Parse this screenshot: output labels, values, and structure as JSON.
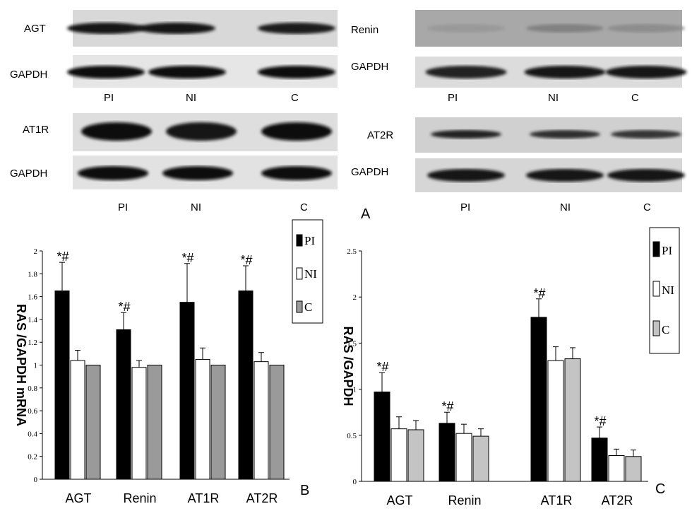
{
  "panel_a": {
    "letter": "A",
    "lanes": [
      "PI",
      "NI",
      "C"
    ],
    "blots": [
      {
        "label": "AGT",
        "intensity": [
          0.92,
          0.9,
          0.88
        ]
      },
      {
        "label": "GAPDH",
        "intensity": [
          0.95,
          0.93,
          0.94
        ]
      },
      {
        "label": "AT1R",
        "intensity": [
          0.95,
          0.92,
          0.93
        ]
      },
      {
        "label": "GAPDH",
        "intensity": [
          0.97,
          0.96,
          0.96
        ]
      },
      {
        "label": "Renin",
        "intensity": [
          0.35,
          0.45,
          0.4
        ]
      },
      {
        "label": "GAPDH",
        "intensity": [
          0.85,
          0.9,
          0.9
        ]
      },
      {
        "label": "AT2R",
        "intensity": [
          0.85,
          0.8,
          0.78
        ]
      },
      {
        "label": "GAPDH",
        "intensity": [
          0.9,
          0.92,
          0.92
        ]
      }
    ]
  },
  "colors": {
    "PI": "#000000",
    "NI": "#ffffff",
    "C_B": "#9a9a9a",
    "C_C": "#c4c4c4"
  },
  "chart_data": [
    {
      "type": "bar",
      "panel": "B",
      "ylabel": "RAS /GAPDH mRNA",
      "ylim": [
        0,
        2
      ],
      "yticks": [
        "0",
        "0.2",
        "0.4",
        "0.6",
        "0.8",
        "1",
        "1.2",
        "1.4",
        "1.6",
        "1.8",
        "2"
      ],
      "categories": [
        "AGT",
        "Renin",
        "AT1R",
        "AT2R"
      ],
      "series": [
        {
          "name": "PI",
          "values": [
            1.65,
            1.31,
            1.55,
            1.65
          ],
          "errors": [
            0.25,
            0.15,
            0.34,
            0.22
          ]
        },
        {
          "name": "NI",
          "values": [
            1.04,
            0.98,
            1.05,
            1.03
          ],
          "errors": [
            0.09,
            0.06,
            0.1,
            0.08
          ]
        },
        {
          "name": "C",
          "values": [
            1.0,
            1.0,
            1.0,
            1.0
          ],
          "errors": [
            0,
            0,
            0,
            0
          ]
        }
      ],
      "annotations": [
        "*#",
        "*#",
        "*#",
        "*#"
      ],
      "legend_position": "top-right"
    },
    {
      "type": "bar",
      "panel": "C",
      "ylabel": "RAS /GAPDH",
      "ylim": [
        0,
        2.5
      ],
      "yticks": [
        "0",
        "0.5",
        "1",
        "1.5",
        "2",
        "2.5"
      ],
      "categories": [
        "AGT",
        "Renin",
        "AT1R",
        "AT2R"
      ],
      "series": [
        {
          "name": "PI",
          "values": [
            0.97,
            0.63,
            1.78,
            0.47
          ],
          "errors": [
            0.21,
            0.12,
            0.2,
            0.12
          ]
        },
        {
          "name": "NI",
          "values": [
            0.57,
            0.52,
            1.31,
            0.28
          ],
          "errors": [
            0.13,
            0.1,
            0.15,
            0.07
          ]
        },
        {
          "name": "C",
          "values": [
            0.56,
            0.49,
            1.33,
            0.27
          ],
          "errors": [
            0.1,
            0.08,
            0.12,
            0.07
          ]
        }
      ],
      "annotations": [
        "*#",
        "*#",
        "*#",
        "*#"
      ],
      "legend_position": "top-right"
    }
  ]
}
